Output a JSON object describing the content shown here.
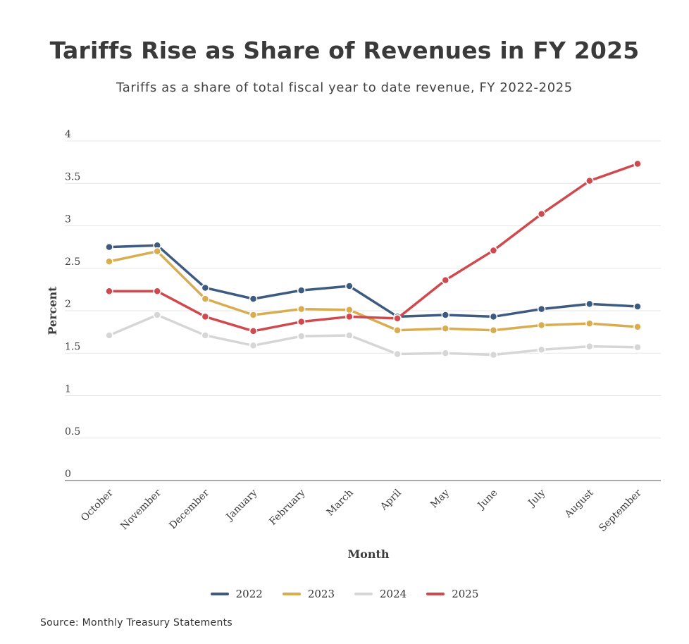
{
  "chart_data": {
    "type": "line",
    "title": "Tariffs Rise as Share of Revenues in FY 2025",
    "subtitle": "Tariffs as a share of total fiscal year to date revenue, FY 2022-2025",
    "xlabel": "Month",
    "ylabel": "Percent",
    "ylim": [
      0,
      4
    ],
    "yticks": [
      "0",
      "0.5",
      "1",
      "1.5",
      "2",
      "2.5",
      "3",
      "3.5",
      "4"
    ],
    "categories": [
      "October",
      "November",
      "December",
      "January",
      "February",
      "March",
      "April",
      "May",
      "June",
      "July",
      "August",
      "September"
    ],
    "series": [
      {
        "name": "2022",
        "color": "#3d5a80",
        "values": [
          2.75,
          2.77,
          2.27,
          2.14,
          2.24,
          2.29,
          1.93,
          1.95,
          1.93,
          2.02,
          2.08,
          2.05
        ]
      },
      {
        "name": "2023",
        "color": "#d9ad4f",
        "values": [
          2.58,
          2.7,
          2.14,
          1.95,
          2.02,
          2.01,
          1.77,
          1.79,
          1.77,
          1.83,
          1.85,
          1.81
        ]
      },
      {
        "name": "2024",
        "color": "#d6d6d6",
        "values": [
          1.71,
          1.95,
          1.71,
          1.59,
          1.7,
          1.71,
          1.49,
          1.5,
          1.48,
          1.54,
          1.58,
          1.57
        ]
      },
      {
        "name": "2025",
        "color": "#cf4a4e",
        "values": [
          2.23,
          2.23,
          1.93,
          1.76,
          1.87,
          1.93,
          1.91,
          2.36,
          2.71,
          3.14,
          3.53,
          3.73
        ]
      }
    ],
    "legend_position": "bottom",
    "grid": true
  },
  "source": "Source: Monthly Treasury Statements"
}
